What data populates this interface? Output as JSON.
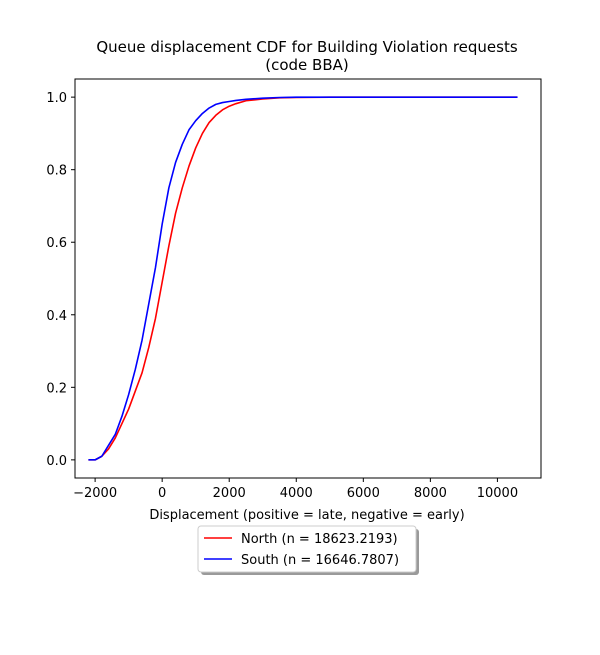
{
  "chart_data": {
    "type": "line",
    "title": "Queue displacement CDF for Building Violation  requests",
    "subtitle": "(code BBA)",
    "xlabel": "Displacement (positive = late, negative = early)",
    "ylabel": "",
    "xlim": [
      -2600,
      11300
    ],
    "ylim": [
      -0.05,
      1.05
    ],
    "xticks": [
      -2000,
      0,
      2000,
      4000,
      6000,
      8000,
      10000
    ],
    "yticks": [
      0.0,
      0.2,
      0.4,
      0.6,
      0.8,
      1.0
    ],
    "xtick_labels": [
      "−2000",
      "0",
      "2000",
      "4000",
      "6000",
      "8000",
      "10000"
    ],
    "ytick_labels": [
      "0.0",
      "0.2",
      "0.4",
      "0.6",
      "0.8",
      "1.0"
    ],
    "grid": false,
    "legend_position": "bottom-center (below plot)",
    "series": [
      {
        "name": "North (n = 18623.2193)",
        "color": "#ff0000",
        "x": [
          -2200,
          -2000,
          -1800,
          -1600,
          -1400,
          -1200,
          -1000,
          -800,
          -600,
          -400,
          -200,
          0,
          200,
          400,
          600,
          800,
          1000,
          1200,
          1400,
          1600,
          1800,
          2000,
          2200,
          2500,
          3000,
          3500,
          4000,
          5000,
          6000,
          8000,
          10600
        ],
        "y": [
          0.0,
          0.0,
          0.01,
          0.03,
          0.06,
          0.1,
          0.14,
          0.19,
          0.24,
          0.31,
          0.39,
          0.49,
          0.59,
          0.68,
          0.75,
          0.81,
          0.86,
          0.9,
          0.93,
          0.95,
          0.965,
          0.975,
          0.982,
          0.99,
          0.995,
          0.998,
          0.999,
          1.0,
          1.0,
          1.0,
          1.0
        ]
      },
      {
        "name": "South (n = 16646.7807)",
        "color": "#0000ff",
        "x": [
          -2200,
          -2000,
          -1800,
          -1600,
          -1400,
          -1200,
          -1000,
          -800,
          -600,
          -400,
          -200,
          0,
          200,
          400,
          600,
          800,
          1000,
          1200,
          1400,
          1600,
          1800,
          2000,
          2200,
          2500,
          3000,
          3500,
          4000,
          5000,
          6000,
          8000,
          10600
        ],
        "y": [
          0.0,
          0.0,
          0.01,
          0.04,
          0.07,
          0.12,
          0.18,
          0.25,
          0.33,
          0.43,
          0.53,
          0.65,
          0.75,
          0.82,
          0.87,
          0.91,
          0.935,
          0.955,
          0.97,
          0.98,
          0.985,
          0.988,
          0.991,
          0.994,
          0.997,
          0.999,
          1.0,
          1.0,
          1.0,
          1.0,
          1.0
        ]
      }
    ]
  }
}
